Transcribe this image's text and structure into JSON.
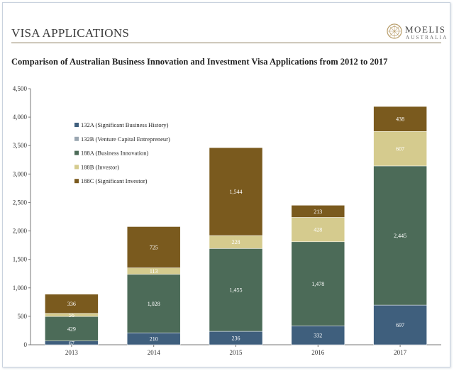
{
  "header": {
    "title": "VISA APPLICATIONS"
  },
  "logo": {
    "name": "MOELIS",
    "sub": "AUSTRALIA"
  },
  "chart_data": {
    "type": "bar",
    "stacked": true,
    "title": "Comparison of Australian Business Innovation and Investment Visa Applications from 2012 to 2017",
    "xlabel": "",
    "ylabel": "",
    "ylim": [
      0,
      4500
    ],
    "yticks": [
      0,
      500,
      1000,
      1500,
      2000,
      2500,
      3000,
      3500,
      4000,
      4500
    ],
    "ytick_labels": [
      "0",
      "500",
      "1,000",
      "1,500",
      "2,000",
      "2,500",
      "3,000",
      "3,500",
      "4,000",
      "4,500"
    ],
    "categories": [
      "2013",
      "2014",
      "2015",
      "2016",
      "2017"
    ],
    "legend_position": "left",
    "series": [
      {
        "name": "132A (Significant Business History)",
        "color": "#3f5f7d",
        "values": [
          67,
          210,
          236,
          332,
          697
        ],
        "labels": [
          "67",
          "210",
          "236",
          "332",
          "697"
        ]
      },
      {
        "name": "132B (Venture Capital Entrepreneur)",
        "color": "#9aa6b1",
        "values": [
          0,
          0,
          0,
          0,
          0
        ],
        "labels": [
          "",
          "",
          "",
          "",
          ""
        ]
      },
      {
        "name": "188A (Business Innovation)",
        "color": "#4c6b58",
        "values": [
          429,
          1028,
          1455,
          1478,
          2445
        ],
        "labels": [
          "429",
          "1,028",
          "1,455",
          "1,478",
          "2,445"
        ]
      },
      {
        "name": "188B (Investor)",
        "color": "#d5cb8e",
        "values": [
          56,
          113,
          228,
          428,
          607
        ],
        "labels": [
          "56",
          "113",
          "228",
          "428",
          "607"
        ]
      },
      {
        "name": "188C (Significant Investor)",
        "color": "#7a5a1e",
        "values": [
          336,
          725,
          1544,
          213,
          438
        ],
        "labels": [
          "336",
          "725",
          "1,544",
          "213",
          "438"
        ]
      }
    ]
  }
}
